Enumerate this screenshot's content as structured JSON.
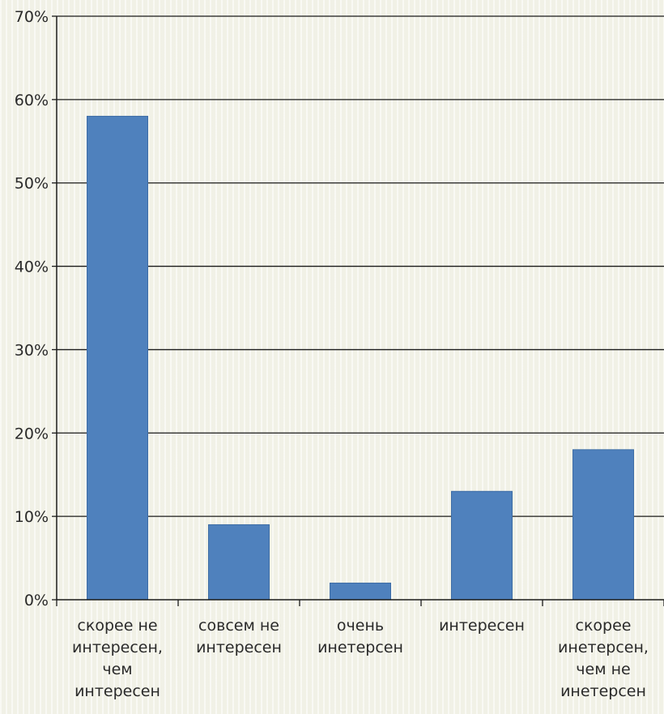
{
  "chart_data": {
    "type": "bar",
    "categories": [
      [
        "скорее не",
        "интересен,",
        "чем",
        "интересен"
      ],
      [
        "совсем не",
        "интересен"
      ],
      [
        "очень",
        "инетерсен"
      ],
      [
        "интересен"
      ],
      [
        "скорее",
        "инетерсен,",
        "чем не",
        "инетерсен"
      ]
    ],
    "values": [
      58,
      9,
      2,
      13,
      18
    ],
    "y_ticks": [
      "0%",
      "10%",
      "20%",
      "30%",
      "40%",
      "50%",
      "60%",
      "70%"
    ],
    "ylim": [
      0,
      70
    ],
    "grid": true,
    "bar_color": "#4f81bd",
    "grid_color": "#1a1a1a"
  }
}
